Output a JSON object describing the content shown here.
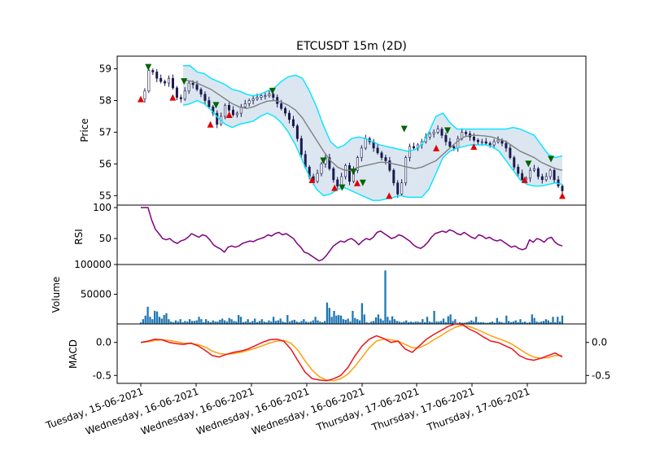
{
  "chart_data": {
    "type": "candlestick",
    "title": "ETCUSDT 15m (2D)",
    "x_tick_labels": [
      "Tuesday, 15-06-2021",
      "Wednesday, 16-06-2021",
      "Wednesday, 16-06-2021",
      "Wednesday, 16-06-2021",
      "Wednesday, 16-06-2021",
      "Thursday, 17-06-2021",
      "Thursday, 17-06-2021",
      "Thursday, 17-06-2021"
    ],
    "price_panel": {
      "ylabel": "Price",
      "ylim": [
        54.7,
        59.4
      ],
      "yticks": [
        55,
        56,
        57,
        58,
        59
      ],
      "close_series": [
        58.05,
        58.3,
        58.95,
        58.9,
        58.7,
        58.6,
        58.55,
        58.7,
        58.4,
        58.1,
        58.05,
        58.3,
        58.55,
        58.5,
        58.35,
        58.2,
        58.0,
        57.8,
        57.6,
        57.25,
        57.5,
        57.85,
        57.7,
        57.55,
        57.6,
        57.8,
        57.9,
        58.0,
        58.05,
        58.1,
        58.15,
        58.15,
        58.2,
        58.1,
        57.9,
        57.75,
        57.6,
        57.4,
        57.2,
        56.8,
        56.3,
        55.9,
        55.6,
        55.45,
        55.7,
        56.0,
        56.2,
        55.85,
        55.5,
        55.3,
        55.6,
        55.95,
        55.45,
        55.8,
        56.2,
        56.5,
        56.8,
        56.7,
        56.5,
        56.35,
        56.2,
        56.1,
        55.8,
        55.4,
        55.05,
        55.4,
        56.2,
        56.55,
        56.5,
        56.6,
        56.7,
        56.85,
        56.95,
        57.0,
        57.1,
        56.9,
        56.7,
        56.55,
        56.5,
        56.8,
        57.0,
        56.95,
        56.85,
        56.75,
        56.7,
        56.7,
        56.65,
        56.6,
        56.7,
        56.75,
        56.65,
        56.5,
        56.2,
        55.9,
        55.7,
        55.5,
        55.55,
        55.8,
        55.85,
        55.6,
        55.5,
        55.6,
        55.8,
        55.5,
        55.3,
        55.15
      ],
      "bollinger": {
        "middle": [
          58.65,
          58.62,
          58.55,
          58.45,
          58.35,
          58.2,
          58.05,
          57.9,
          57.8,
          57.75,
          57.8,
          57.9,
          57.98,
          58.0,
          57.95,
          57.85,
          57.7,
          57.45,
          57.1,
          56.75,
          56.4,
          56.1,
          55.9,
          55.8,
          55.8,
          55.9,
          55.95,
          56.0,
          56.05,
          56.05,
          56.0,
          55.95,
          55.9,
          55.85,
          55.9,
          56.0,
          56.1,
          56.3,
          56.5,
          56.7,
          56.85,
          56.9,
          56.9,
          56.88,
          56.85,
          56.78,
          56.7,
          56.55,
          56.4,
          56.3,
          56.2,
          56.05,
          55.95,
          55.85,
          55.8
        ],
        "upper": [
          59.1,
          59.1,
          58.9,
          58.85,
          58.7,
          58.6,
          58.5,
          58.35,
          58.3,
          58.2,
          58.15,
          58.2,
          58.3,
          58.4,
          58.6,
          58.75,
          58.8,
          58.7,
          58.3,
          57.8,
          57.2,
          56.7,
          56.5,
          56.6,
          56.8,
          56.85,
          56.8,
          56.7,
          56.6,
          56.55,
          56.5,
          56.45,
          56.4,
          56.45,
          56.6,
          57.0,
          57.5,
          57.6,
          57.3,
          57.1,
          57.1,
          57.1,
          57.1,
          57.1,
          57.1,
          57.1,
          57.1,
          57.15,
          57.1,
          57.0,
          56.9,
          56.6,
          56.3,
          56.2,
          56.25
        ],
        "lower": [
          57.85,
          57.9,
          58.0,
          57.9,
          57.7,
          57.45,
          57.25,
          57.15,
          57.25,
          57.3,
          57.35,
          57.5,
          57.6,
          57.5,
          57.3,
          57.0,
          56.6,
          56.1,
          55.6,
          55.2,
          55.0,
          55.05,
          55.2,
          55.25,
          55.15,
          55.05,
          54.95,
          54.85,
          54.85,
          54.9,
          54.95,
          55.0,
          54.95,
          54.95,
          54.95,
          55.2,
          55.7,
          56.2,
          56.4,
          56.5,
          56.55,
          56.6,
          56.6,
          56.6,
          56.55,
          56.4,
          56.1,
          55.8,
          55.5,
          55.35,
          55.3,
          55.3,
          55.35,
          55.4,
          55.35
        ]
      },
      "sell_signals": [
        [
          4,
          59.05
        ],
        [
          23,
          58.6
        ],
        [
          40,
          57.85
        ],
        [
          70,
          58.3
        ],
        [
          97,
          56.1
        ],
        [
          107,
          55.25
        ],
        [
          113,
          55.75
        ],
        [
          118,
          55.4
        ],
        [
          140,
          57.1
        ],
        [
          163,
          57.05
        ],
        [
          206,
          56.0
        ],
        [
          218,
          56.15
        ]
      ],
      "buy_signals": [
        [
          0,
          58.05
        ],
        [
          17,
          58.1
        ],
        [
          37,
          57.25
        ],
        [
          47,
          57.55
        ],
        [
          91,
          55.5
        ],
        [
          103,
          55.25
        ],
        [
          115,
          55.4
        ],
        [
          132,
          55.0
        ],
        [
          157,
          56.5
        ],
        [
          177,
          56.55
        ],
        [
          204,
          55.5
        ],
        [
          224,
          55.0
        ]
      ],
      "colors": {
        "bollinger_band": "#00e5ff",
        "band_fill": "#dbe6f1",
        "middle": "#808080",
        "sell_marker": "#006400",
        "buy_marker": "#e00000",
        "candles": "#1b1b4d"
      }
    },
    "rsi_panel": {
      "ylabel": "RSI",
      "ylim": [
        8,
        104
      ],
      "yticks": [
        50,
        100
      ],
      "values": [
        100,
        100,
        100,
        80,
        65,
        58,
        50,
        48,
        50,
        45,
        42,
        46,
        48,
        52,
        58,
        55,
        52,
        56,
        54,
        48,
        40,
        36,
        33,
        28,
        36,
        38,
        36,
        38,
        42,
        44,
        46,
        45,
        48,
        50,
        52,
        56,
        54,
        58,
        60,
        56,
        58,
        54,
        50,
        42,
        36,
        28,
        26,
        22,
        18,
        14,
        16,
        22,
        30,
        38,
        42,
        46,
        44,
        48,
        50,
        46,
        40,
        46,
        50,
        48,
        52,
        60,
        62,
        58,
        54,
        50,
        52,
        56,
        54,
        50,
        46,
        40,
        36,
        34,
        38,
        44,
        52,
        58,
        60,
        62,
        60,
        64,
        62,
        58,
        56,
        60,
        56,
        52,
        50,
        56,
        54,
        50,
        52,
        48,
        46,
        48,
        44,
        40,
        36,
        38,
        34,
        32,
        34,
        48,
        44,
        50,
        48,
        44,
        50,
        52,
        44,
        40,
        38
      ],
      "color": "#800080"
    },
    "volume_panel": {
      "ylabel": "Volume",
      "ylim": [
        0,
        100000
      ],
      "yticks": [
        50000,
        100000
      ],
      "values": [
        2500,
        8000,
        14000,
        29000,
        12000,
        8000,
        22000,
        21000,
        12000,
        9000,
        15000,
        18000,
        8000,
        4000,
        3000,
        6000,
        4000,
        8000,
        3000,
        5000,
        4000,
        8000,
        5000,
        5000,
        6000,
        12000,
        8000,
        3000,
        8000,
        5000,
        3000,
        6000,
        4000,
        4000,
        7000,
        9000,
        6000,
        4000,
        10000,
        8000,
        5000,
        4000,
        15000,
        12000,
        3000,
        4000,
        8000,
        3000,
        5000,
        9000,
        3000,
        5000,
        8000,
        4000,
        3000,
        6000,
        4000,
        12000,
        5000,
        6000,
        9000,
        4000,
        3000,
        15000,
        4000,
        6000,
        7000,
        4000,
        3000,
        5000,
        8000,
        4000,
        3000,
        4000,
        6000,
        12000,
        6000,
        4000,
        3000,
        5000,
        36000,
        27000,
        12000,
        22000,
        14000,
        15000,
        14000,
        8000,
        7000,
        9000,
        4000,
        22000,
        10000,
        8000,
        6000,
        35000,
        16000,
        3000,
        2000,
        4000,
        5000,
        11000,
        16000,
        9000,
        6000,
        90000,
        12000,
        6000,
        13000,
        8000,
        5000,
        4000,
        3000,
        4000,
        6000,
        3000,
        4000,
        3000,
        4000,
        4000,
        3000,
        8000,
        3000,
        12000,
        4000,
        3000,
        22000,
        4000,
        4000,
        5000,
        9000,
        3000,
        13000,
        16000,
        5000,
        8000,
        2000,
        3000,
        2000,
        2000,
        3000,
        4000,
        6000,
        4000,
        12000,
        3000,
        3000,
        3000,
        2000,
        2000,
        3000,
        4000,
        2000,
        10000,
        4000,
        3000,
        2000,
        14000,
        5000,
        3000,
        4000,
        6000,
        3000,
        8000,
        3000,
        4000,
        2000,
        3000,
        16000,
        10000,
        4000,
        3000,
        4000,
        5000,
        8000,
        6000,
        3000,
        12000,
        3000,
        12000,
        4000,
        14000
      ],
      "color": "#1f77b4"
    },
    "macd_panel": {
      "ylabel": "MACD",
      "ylim": [
        -0.62,
        0.28
      ],
      "yticks_left": [
        -0.5,
        0.0
      ],
      "yticks_right": [
        -0.5,
        0.0
      ],
      "macd": [
        0.0,
        0.02,
        0.05,
        0.04,
        0.0,
        -0.02,
        -0.03,
        -0.01,
        -0.05,
        -0.12,
        -0.2,
        -0.22,
        -0.18,
        -0.15,
        -0.13,
        -0.1,
        -0.05,
        0.0,
        0.04,
        0.05,
        0.02,
        -0.1,
        -0.28,
        -0.45,
        -0.55,
        -0.57,
        -0.58,
        -0.55,
        -0.5,
        -0.38,
        -0.2,
        -0.05,
        0.05,
        0.1,
        0.06,
        0.0,
        0.02,
        -0.1,
        -0.15,
        -0.05,
        0.05,
        0.12,
        0.18,
        0.24,
        0.28,
        0.27,
        0.2,
        0.15,
        0.08,
        0.02,
        0.0,
        -0.05,
        -0.1,
        -0.2,
        -0.25,
        -0.27,
        -0.24,
        -0.2,
        -0.16,
        -0.22
      ],
      "signal": [
        0.0,
        0.01,
        0.03,
        0.04,
        0.03,
        0.01,
        -0.01,
        -0.02,
        -0.03,
        -0.07,
        -0.13,
        -0.17,
        -0.18,
        -0.17,
        -0.15,
        -0.12,
        -0.09,
        -0.05,
        -0.01,
        0.02,
        0.03,
        -0.01,
        -0.12,
        -0.28,
        -0.42,
        -0.52,
        -0.57,
        -0.58,
        -0.55,
        -0.48,
        -0.36,
        -0.22,
        -0.08,
        0.02,
        0.05,
        0.04,
        0.02,
        -0.03,
        -0.08,
        -0.08,
        -0.03,
        0.04,
        0.1,
        0.17,
        0.23,
        0.26,
        0.24,
        0.2,
        0.15,
        0.1,
        0.06,
        0.02,
        -0.03,
        -0.1,
        -0.17,
        -0.22,
        -0.24,
        -0.23,
        -0.2,
        -0.2
      ],
      "colors": {
        "macd": "#e8141b",
        "signal": "#ff9f0a"
      }
    },
    "grid": false,
    "legend": "none"
  }
}
